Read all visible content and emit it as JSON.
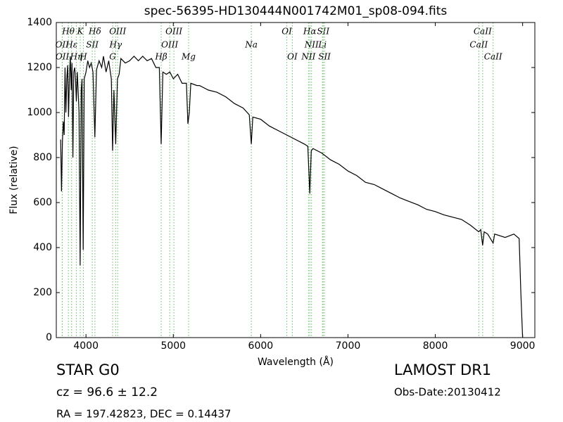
{
  "chart_data": {
    "type": "line",
    "title": "spec-56395-HD130444N001742M01_sp08-094.fits",
    "x_label": "Wavelength (Å)",
    "y_label": "Flux (relative)",
    "xlim": [
      3660,
      9140
    ],
    "ylim": [
      0,
      1400
    ],
    "xticks": [
      4000,
      5000,
      6000,
      7000,
      8000,
      9000
    ],
    "yticks": [
      0,
      200,
      400,
      600,
      800,
      1000,
      1200,
      1400
    ],
    "color": "#000000",
    "marker_color": "#66bb66",
    "x": [
      3710,
      3720,
      3730,
      3740,
      3750,
      3760,
      3770,
      3780,
      3790,
      3800,
      3810,
      3820,
      3830,
      3840,
      3850,
      3860,
      3870,
      3880,
      3890,
      3900,
      3910,
      3920,
      3933,
      3945,
      3955,
      3968,
      3980,
      4000,
      4020,
      4040,
      4060,
      4080,
      4102,
      4120,
      4150,
      4180,
      4200,
      4230,
      4260,
      4290,
      4305,
      4320,
      4340,
      4360,
      4380,
      4400,
      4450,
      4500,
      4550,
      4600,
      4650,
      4700,
      4750,
      4800,
      4840,
      4861,
      4880,
      4920,
      4960,
      5000,
      5050,
      5100,
      5150,
      5167,
      5183,
      5200,
      5270,
      5300,
      5400,
      5500,
      5600,
      5700,
      5800,
      5870,
      5893,
      5910,
      6000,
      6100,
      6200,
      6300,
      6400,
      6500,
      6540,
      6563,
      6580,
      6600,
      6700,
      6800,
      6900,
      7000,
      7100,
      7200,
      7300,
      7400,
      7500,
      7600,
      7700,
      7800,
      7900,
      8000,
      8100,
      8200,
      8300,
      8400,
      8498,
      8520,
      8542,
      8560,
      8600,
      8662,
      8680,
      8800,
      8900,
      8960,
      8980,
      9000
    ],
    "values": [
      880,
      650,
      870,
      960,
      900,
      1200,
      1000,
      1150,
      1210,
      980,
      1150,
      1250,
      1100,
      1220,
      800,
      1180,
      1200,
      1150,
      1050,
      1180,
      1100,
      1000,
      320,
      1100,
      1150,
      390,
      1150,
      1180,
      1230,
      1200,
      1220,
      1180,
      890,
      1190,
      1230,
      1200,
      1250,
      1180,
      1230,
      1150,
      830,
      1100,
      860,
      1150,
      1170,
      1240,
      1220,
      1230,
      1250,
      1230,
      1250,
      1230,
      1240,
      1200,
      1200,
      860,
      1180,
      1170,
      1180,
      1150,
      1170,
      1130,
      1130,
      950,
      1000,
      1130,
      1120,
      1120,
      1100,
      1090,
      1070,
      1040,
      1020,
      990,
      860,
      980,
      970,
      940,
      920,
      900,
      880,
      860,
      850,
      640,
      830,
      840,
      820,
      790,
      770,
      740,
      720,
      690,
      680,
      660,
      640,
      620,
      605,
      590,
      570,
      560,
      545,
      535,
      525,
      500,
      470,
      480,
      410,
      470,
      460,
      420,
      460,
      445,
      460,
      440,
      200,
      0
    ],
    "line_markers": [
      [
        {
          "label": "Hθ",
          "x": 3798
        },
        {
          "label": "K",
          "x": 3934
        },
        {
          "label": "Hδ",
          "x": 4102
        },
        {
          "label": "OIII",
          "x": 4363
        },
        {
          "label": "OIII",
          "x": 5007
        },
        {
          "label": "OI",
          "x": 6300
        },
        {
          "label": "Hα",
          "x": 6563
        },
        {
          "label": "SII",
          "x": 6716
        },
        {
          "label": "CaII",
          "x": 8542
        }
      ],
      [
        {
          "label": "OII",
          "x": 3727
        },
        {
          "label": "Hε",
          "x": 3835
        },
        {
          "label": "SII",
          "x": 4072
        },
        {
          "label": "Hγ",
          "x": 4340
        },
        {
          "label": "OIII",
          "x": 4959
        },
        {
          "label": "Na",
          "x": 5893
        },
        {
          "label": "NII",
          "x": 6583
        },
        {
          "label": "Li",
          "x": 6708
        },
        {
          "label": "CaII",
          "x": 8498
        }
      ],
      [
        {
          "label": "OII",
          "x": 3729
        },
        {
          "label": "Hη",
          "x": 3889
        },
        {
          "label": "H",
          "x": 3970
        },
        {
          "label": "G",
          "x": 4305
        },
        {
          "label": "Hβ",
          "x": 4861
        },
        {
          "label": "Mg",
          "x": 5175
        },
        {
          "label": "OI",
          "x": 6363
        },
        {
          "label": "NII",
          "x": 6548
        },
        {
          "label": "SII",
          "x": 6731
        },
        {
          "label": "CaII",
          "x": 8662
        }
      ]
    ],
    "info": {
      "object": "STAR   G0",
      "cz": "cz = 96.6  ± 12.2",
      "coords": "RA = 197.42823, DEC = 0.14437",
      "survey": "LAMOST DR1",
      "date": "Obs-Date:20130412"
    }
  }
}
